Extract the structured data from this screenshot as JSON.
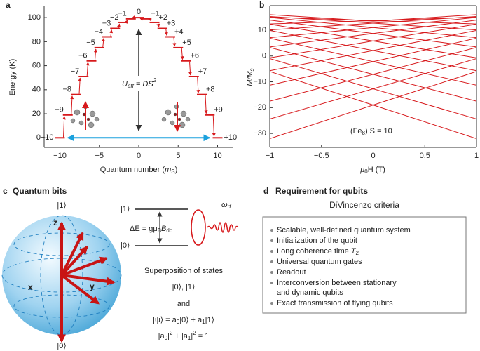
{
  "chart_data": [
    {
      "type": "levels",
      "panel_label": "a",
      "x": [
        -10,
        -9,
        -8,
        -7,
        -6,
        -5,
        -4,
        -3,
        -2,
        -1,
        0,
        1,
        2,
        3,
        4,
        5,
        6,
        7,
        8,
        9,
        10
      ],
      "values": [
        0,
        19,
        36,
        51,
        64,
        75,
        84,
        91,
        96,
        99,
        100,
        99,
        96,
        91,
        84,
        75,
        64,
        51,
        36,
        19,
        0
      ],
      "x_labels": [
        "−10",
        "−9",
        "−8",
        "−7",
        "−6",
        "−5",
        "−4",
        "−3",
        "−2",
        "−1",
        "0",
        "+1",
        "+2",
        "+3",
        "+4",
        "+5",
        "+6",
        "+7",
        "+8",
        "+9",
        "+10"
      ],
      "color": "#d7191c",
      "xlim": [
        -12,
        12
      ],
      "ylim": [
        -8,
        110
      ],
      "xticks": [
        {
          "value": -10,
          "label": "−10"
        },
        {
          "value": -5,
          "label": "−5"
        },
        0,
        5,
        10
      ],
      "yticks": [
        0,
        20,
        40,
        60,
        80,
        100
      ],
      "y_label": "Energy (K)",
      "x_label": [
        "Quantum number (",
        "m",
        "S",
        ")"
      ],
      "annotation": [
        "U",
        "eff",
        " = DS",
        "2"
      ]
    },
    {
      "type": "line",
      "panel_label": "b",
      "x": [
        -1,
        0,
        1
      ],
      "color": "#d7191c",
      "series": [
        {
          "values": [
            16,
            13.5,
            16
          ]
        },
        {
          "values": [
            15,
            13.7,
            12.4
          ]
        },
        {
          "values": [
            12.4,
            13.7,
            15
          ]
        },
        {
          "values": [
            15.3,
            12.7,
            10.1
          ]
        },
        {
          "values": [
            10.1,
            12.7,
            15.3
          ]
        },
        {
          "values": [
            14.9,
            11,
            7.1
          ]
        },
        {
          "values": [
            7.1,
            11,
            14.9
          ]
        },
        {
          "values": [
            13.9,
            8.7,
            3.5
          ]
        },
        {
          "values": [
            3.5,
            8.7,
            13.9
          ]
        },
        {
          "values": [
            12.3,
            5.8,
            -0.7
          ]
        },
        {
          "values": [
            -0.7,
            5.8,
            12.3
          ]
        },
        {
          "values": [
            9.9,
            2.1,
            -5.7
          ]
        },
        {
          "values": [
            -5.7,
            2.1,
            9.9
          ]
        },
        {
          "values": [
            6.9,
            -2.2,
            -11.3
          ]
        },
        {
          "values": [
            -11.3,
            -2.2,
            6.9
          ]
        },
        {
          "values": [
            3.3,
            -7.1,
            -17.5
          ]
        },
        {
          "values": [
            -17.5,
            -7.1,
            3.3
          ]
        },
        {
          "values": [
            -1,
            -12.7,
            -24.4
          ]
        },
        {
          "values": [
            -24.4,
            -12.7,
            -1
          ]
        },
        {
          "values": [
            -6,
            -19,
            -32
          ]
        },
        {
          "values": [
            -32,
            -19,
            -6
          ]
        }
      ],
      "xlim": [
        -1,
        1
      ],
      "ylim": [
        -35.4,
        19.5
      ],
      "xticks": [
        {
          "value": -1,
          "label": "−1"
        },
        {
          "value": -0.5,
          "label": "−0.5"
        },
        0,
        0.5,
        1
      ],
      "yticks": [
        {
          "value": -30,
          "label": "−30"
        },
        {
          "value": -20,
          "label": "−20"
        },
        {
          "value": -10,
          "label": "−10"
        },
        0,
        10
      ],
      "y_label": [
        "M/M",
        "s"
      ],
      "x_label": [
        "μ",
        "0",
        "H (T)"
      ],
      "annotation": [
        "(Fe",
        "8",
        ") S = 10"
      ]
    }
  ],
  "panel_c": {
    "label": "c",
    "title": "Quantum bits",
    "sphere": {
      "top": "|1⟩",
      "bottom": "|0⟩",
      "z": "z",
      "x": "x",
      "y": "y"
    },
    "levels": {
      "upper": "|1⟩",
      "lower": "|0⟩",
      "gap": [
        "ΔE = gμ",
        "B",
        "B",
        "dc"
      ],
      "drive": [
        "ω",
        "rf"
      ]
    },
    "text": [
      "Superposition of states",
      "|0⟩, |1⟩",
      "and"
    ],
    "psi": [
      "|ψ⟩ = a",
      "0",
      "|0⟩ + a",
      "1",
      "|1⟩"
    ],
    "norm": [
      "|a",
      "0",
      "|",
      "2",
      " + |a",
      "1",
      "|",
      "2",
      " = 1"
    ]
  },
  "panel_d": {
    "label": "d",
    "title": "Requirement for qubits",
    "subtitle": "DiVincenzo criteria",
    "lines": [
      "Scalable, well-defined quantum system",
      "Initialization of the qubit",
      "Universal quantum gates",
      "Readout",
      "Interconversion between stationary",
      "and dynamic qubits",
      "Exact transmission of flying qubits"
    ],
    "coherence": [
      "Long coherence time ",
      "T",
      "2"
    ]
  }
}
